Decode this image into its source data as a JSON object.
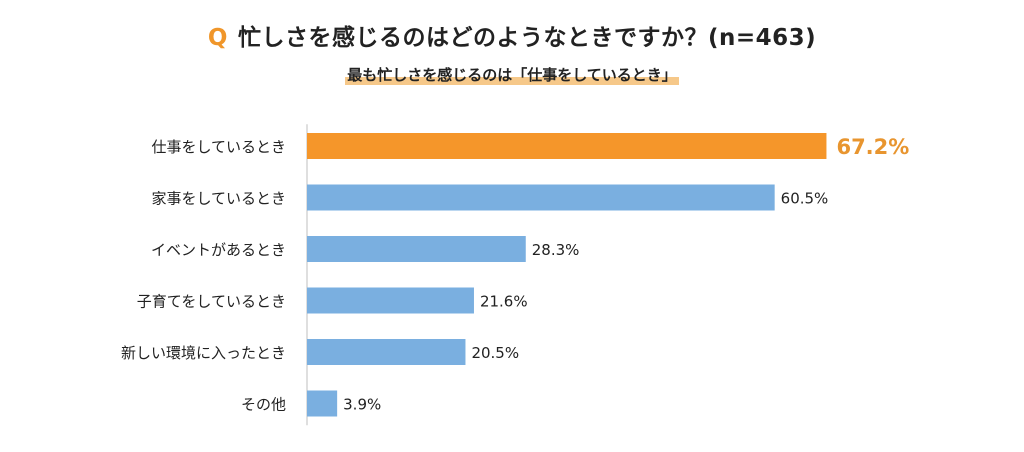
{
  "question": {
    "mark": "Q",
    "text": "忙しさを感じるのはどのようなときですか？(n=463)"
  },
  "subtitle": "最も忙しさを感じるのは「仕事をしているとき」",
  "colors": {
    "highlight": "#f5962a",
    "bar": "#7aafe0",
    "highlight_label": "#e8952f",
    "text": "#222222",
    "axis": "#bfbfbf"
  },
  "chart_data": {
    "type": "bar",
    "orientation": "horizontal",
    "unit": "%",
    "categories": [
      "仕事をしているとき",
      "家事をしているとき",
      "イベントがあるとき",
      "子育てをしているとき",
      "新しい環境に入ったとき",
      "その他"
    ],
    "values": [
      67.2,
      60.5,
      28.3,
      21.6,
      20.5,
      3.9
    ],
    "value_labels": [
      "67.2%",
      "60.5%",
      "28.3%",
      "21.6%",
      "20.5%",
      "3.9%"
    ],
    "highlight_index": 0,
    "xlim": [
      0,
      100
    ],
    "grid": false,
    "legend": "none"
  }
}
